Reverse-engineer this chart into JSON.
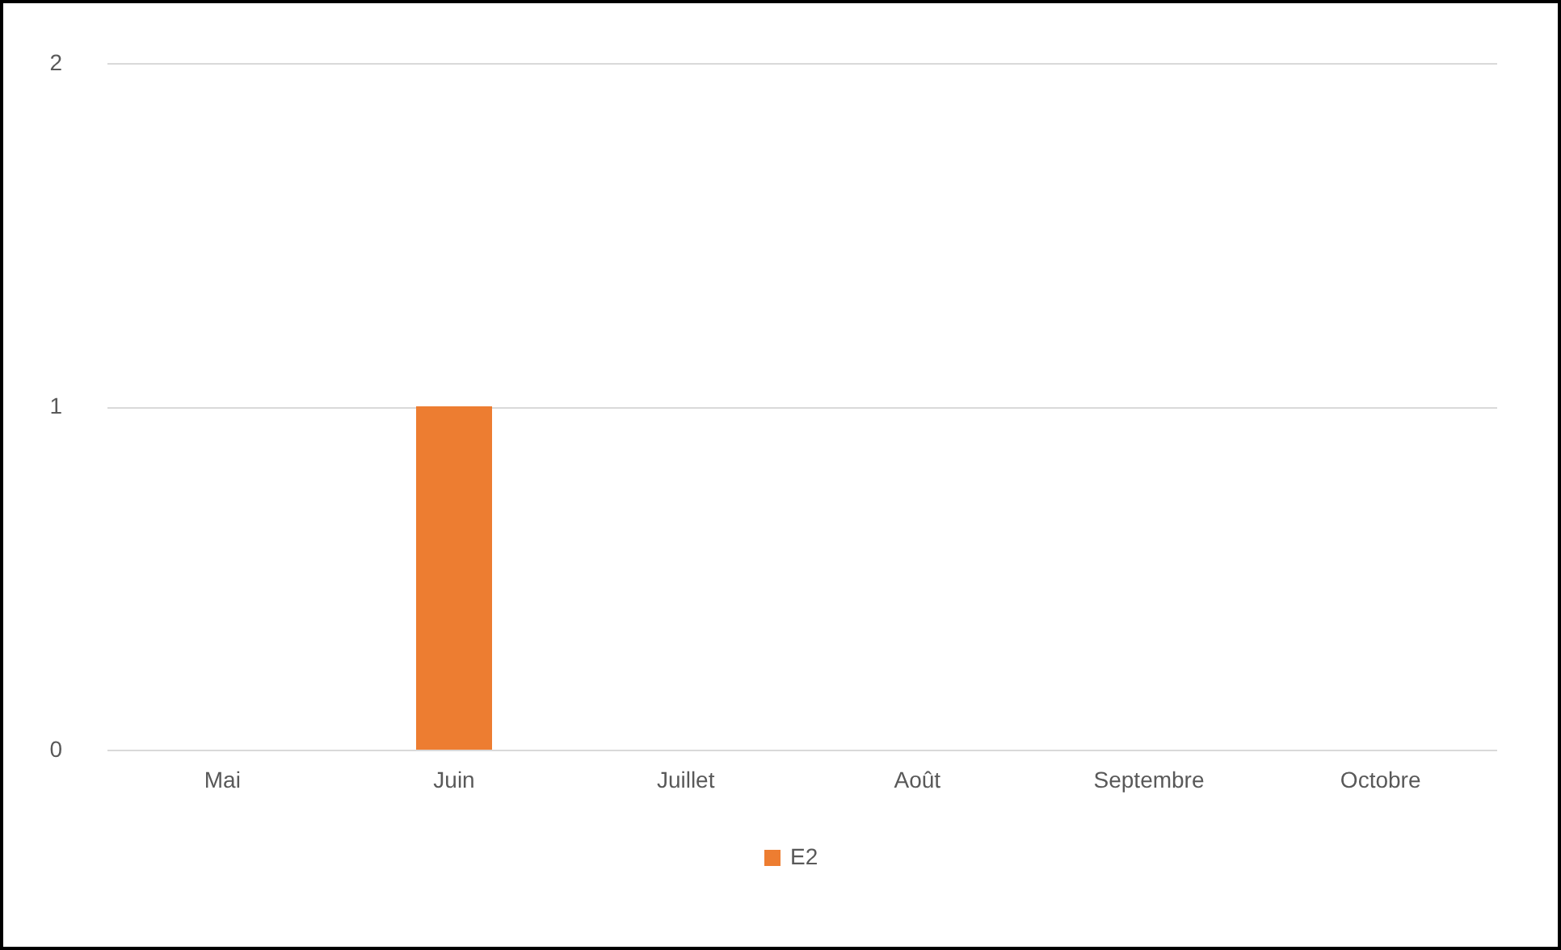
{
  "chart_data": {
    "type": "bar",
    "categories": [
      "Mai",
      "Juin",
      "Juillet",
      "Août",
      "Septembre",
      "Octobre"
    ],
    "series": [
      {
        "name": "E2",
        "color": "#ed7d31",
        "values": [
          0,
          1,
          0,
          0,
          0,
          0
        ]
      }
    ],
    "ylim": [
      0,
      2
    ],
    "yticks": [
      0,
      1,
      2
    ],
    "grid": "y",
    "legend": "bottom"
  }
}
